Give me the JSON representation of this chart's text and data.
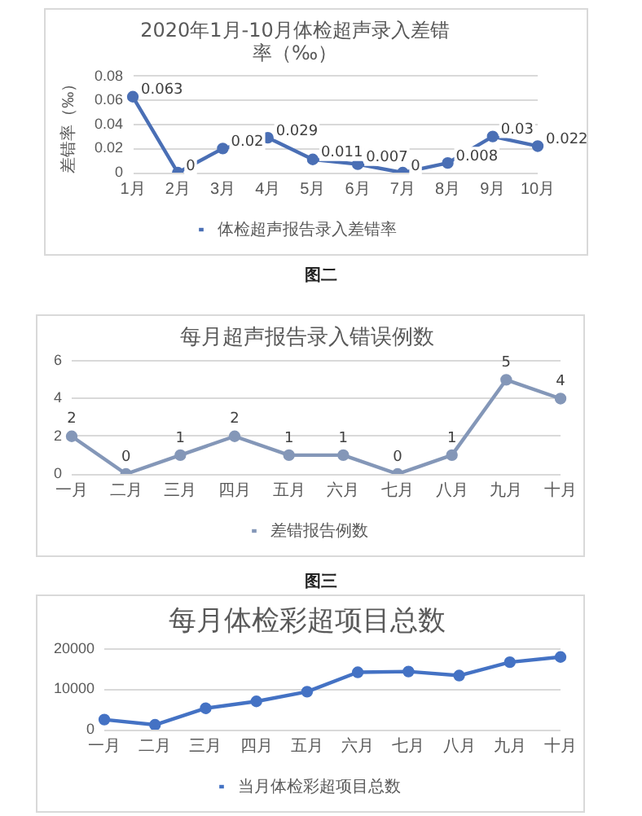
{
  "chart_data": [
    {
      "type": "line",
      "title": "2020年1月-10月体检超声录入差错率（‰）",
      "ylabel": "差错率（‰）",
      "categories": [
        "1月",
        "2月",
        "3月",
        "4月",
        "5月",
        "6月",
        "7月",
        "8月",
        "9月",
        "10月"
      ],
      "series": [
        {
          "name": "体检超声报告录入差错率",
          "color": "#4a6fb5",
          "values": [
            0.063,
            0,
            0.02,
            0.029,
            0.011,
            0.007,
            0,
            0.008,
            0.03,
            0.022
          ]
        }
      ],
      "ylim": [
        0,
        0.08
      ],
      "yticks": [
        0,
        0.02,
        0.04,
        0.06,
        0.08
      ],
      "grid": "y",
      "legend": "bottom",
      "marker": "circle",
      "data_labels": true,
      "annotations": [
        "图二"
      ]
    },
    {
      "type": "line",
      "title": "每月超声报告录入错误例数",
      "categories": [
        "一月",
        "二月",
        "三月",
        "四月",
        "五月",
        "六月",
        "七月",
        "八月",
        "九月",
        "十月"
      ],
      "series": [
        {
          "name": "差错报告例数",
          "color": "#8497b8",
          "values": [
            2,
            0,
            1,
            2,
            1,
            1,
            0,
            1,
            5,
            4
          ]
        }
      ],
      "ylim": [
        0,
        6
      ],
      "yticks": [
        0,
        2,
        4,
        6
      ],
      "grid": "y",
      "legend": "bottom",
      "marker": "circle",
      "data_labels": true,
      "annotations": [
        "图三"
      ]
    },
    {
      "type": "line",
      "title": "每月体检彩超项目总数",
      "categories": [
        "一月",
        "二月",
        "三月",
        "四月",
        "五月",
        "六月",
        "七月",
        "八月",
        "九月",
        "十月"
      ],
      "series": [
        {
          "name": "当月体检彩超项目总数",
          "color": "#4472c4",
          "values": [
            2500,
            1200,
            5300,
            7000,
            9400,
            14200,
            14400,
            13400,
            16700,
            18000
          ]
        }
      ],
      "ylim": [
        0,
        20000
      ],
      "yticks": [
        0,
        10000,
        20000
      ],
      "grid": "y",
      "legend": "bottom",
      "marker": "circle"
    }
  ]
}
